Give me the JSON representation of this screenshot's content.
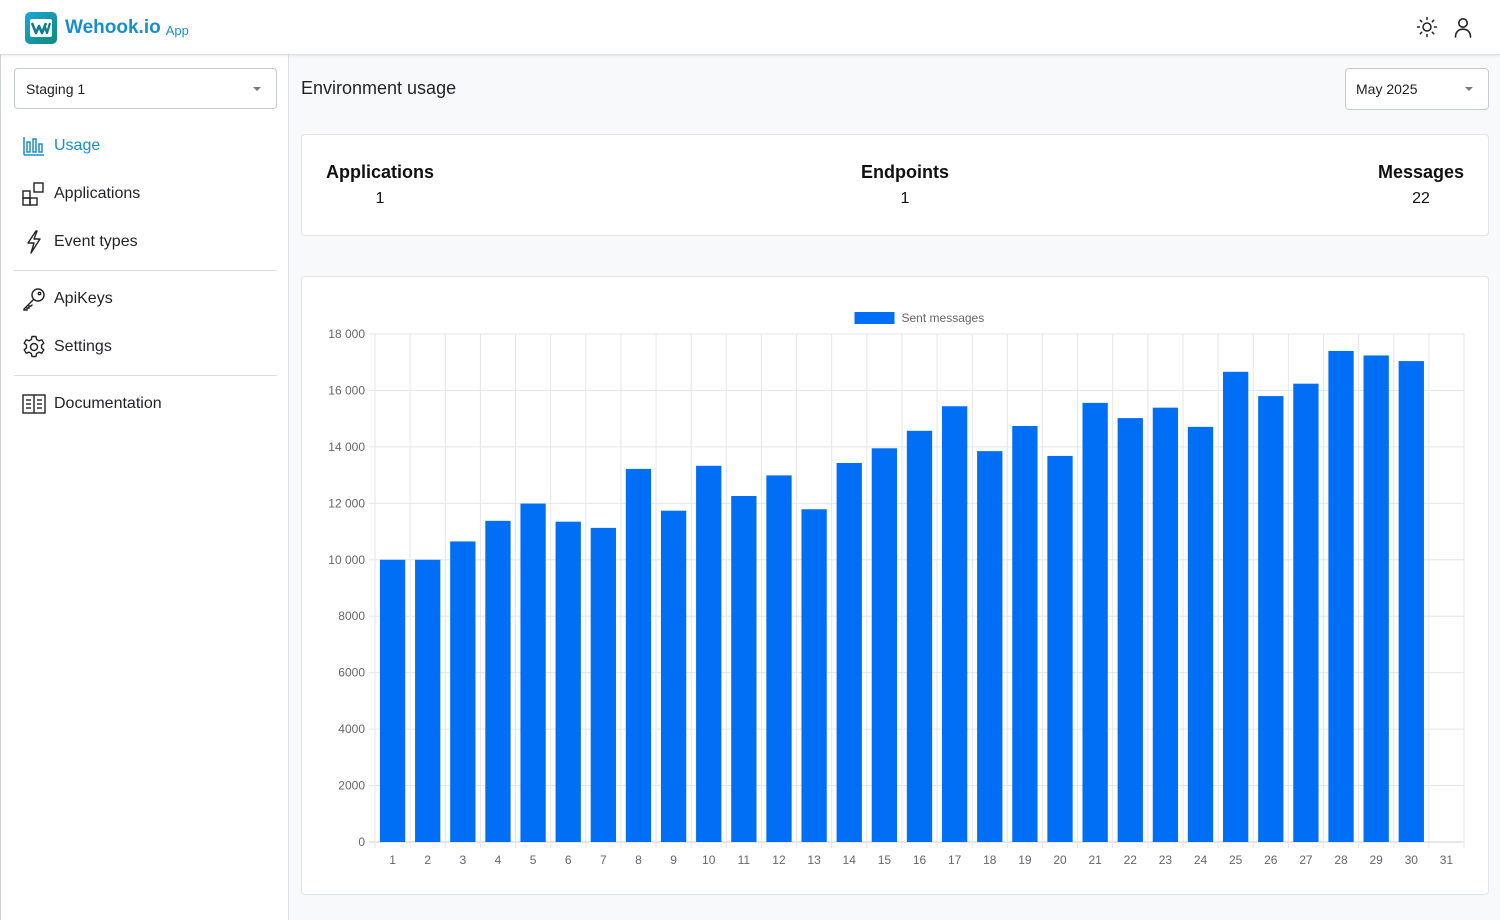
{
  "header": {
    "brand_name": "Wehook.io",
    "brand_suffix": "App",
    "icons": [
      "theme-toggle-icon",
      "user-icon"
    ]
  },
  "sidebar": {
    "environment": "Staging 1",
    "items": [
      {
        "label": "Usage",
        "icon": "bar-chart-icon",
        "active": true
      },
      {
        "label": "Applications",
        "icon": "applications-icon",
        "active": false
      },
      {
        "label": "Event types",
        "icon": "lightning-icon",
        "active": false
      },
      {
        "label": "ApiKeys",
        "icon": "key-icon",
        "active": false
      },
      {
        "label": "Settings",
        "icon": "gear-icon",
        "active": false
      },
      {
        "label": "Documentation",
        "icon": "book-icon",
        "active": false
      }
    ]
  },
  "main": {
    "title": "Environment usage",
    "month": "May 2025",
    "stats": [
      {
        "label": "Applications",
        "value": "1"
      },
      {
        "label": "Endpoints",
        "value": "1"
      },
      {
        "label": "Messages",
        "value": "22"
      }
    ]
  },
  "colors": {
    "accent": "#1a8fc8",
    "bar": "#006ff5"
  },
  "chart_data": {
    "type": "bar",
    "title": "",
    "xlabel": "",
    "ylabel": "",
    "legend_position": "top-center",
    "grid": true,
    "ylim": [
      0,
      18000
    ],
    "yticks": [
      "0",
      "2000",
      "4000",
      "6000",
      "8000",
      "10 000",
      "12 000",
      "14 000",
      "16 000",
      "18 000"
    ],
    "categories": [
      "1",
      "2",
      "3",
      "4",
      "5",
      "6",
      "7",
      "8",
      "9",
      "10",
      "11",
      "12",
      "13",
      "14",
      "15",
      "16",
      "17",
      "18",
      "19",
      "20",
      "21",
      "22",
      "23",
      "24",
      "25",
      "26",
      "27",
      "28",
      "29",
      "30",
      "31"
    ],
    "series": [
      {
        "name": "Sent messages",
        "values": [
          10000,
          10000,
          10650,
          11380,
          11990,
          11350,
          11130,
          13220,
          11740,
          13330,
          12260,
          12990,
          11790,
          13430,
          13950,
          14570,
          15440,
          13850,
          14740,
          13680,
          15560,
          15020,
          15390,
          14710,
          16660,
          15800,
          16240,
          17400,
          17240,
          17040,
          null
        ]
      }
    ]
  }
}
